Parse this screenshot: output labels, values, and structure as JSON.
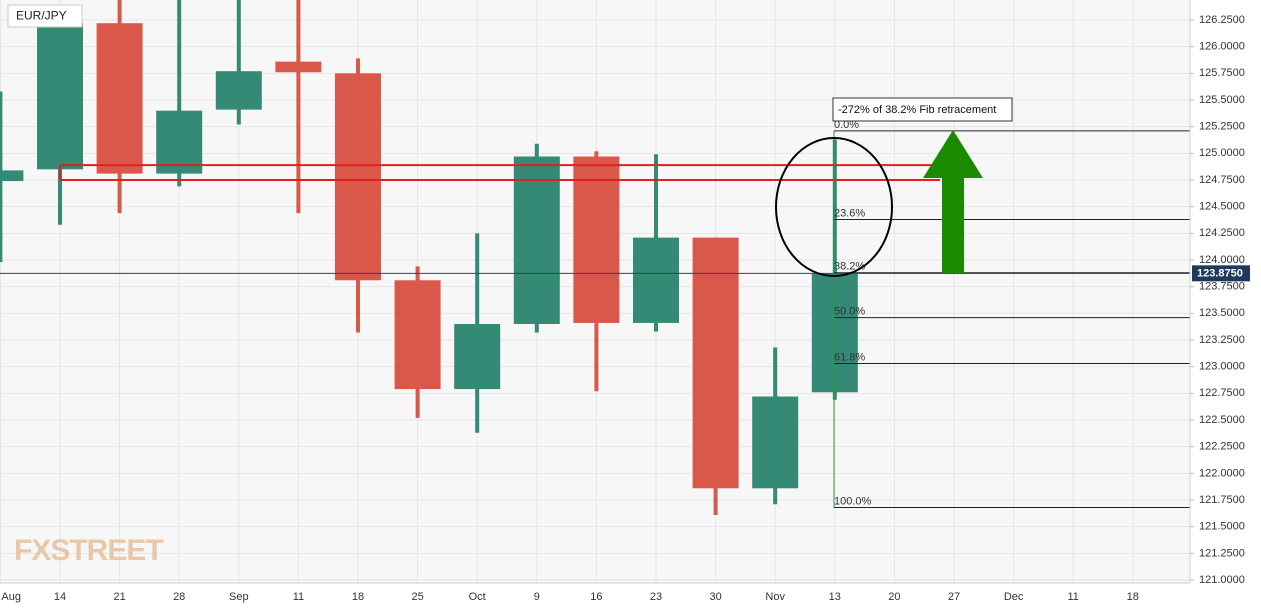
{
  "chart_data": {
    "type": "candlestick",
    "title": "EUR/JPY",
    "watermark": "FXSTREET",
    "categories": [
      "Aug",
      "14",
      "21",
      "28",
      "Sep",
      "11",
      "18",
      "25",
      "Oct",
      "9",
      "16",
      "23",
      "30",
      "Nov",
      "13",
      "20",
      "27",
      "Dec",
      "11",
      "18"
    ],
    "open": [
      124.74,
      124.85,
      126.22,
      124.81,
      125.41,
      125.86,
      125.75,
      123.81,
      122.79,
      123.4,
      124.97,
      123.41,
      124.21,
      121.86,
      122.76,
      null,
      null,
      null,
      null,
      null
    ],
    "high": [
      125.58,
      126.3,
      126.45,
      126.44,
      126.44,
      126.44,
      125.89,
      123.94,
      124.25,
      125.09,
      125.02,
      124.99,
      124.21,
      123.18,
      125.13,
      null,
      null,
      null,
      null,
      null
    ],
    "low": [
      123.98,
      124.33,
      124.44,
      124.69,
      125.27,
      124.44,
      123.32,
      122.52,
      122.38,
      123.32,
      122.77,
      123.33,
      121.61,
      121.71,
      122.69,
      null,
      null,
      null,
      null,
      null
    ],
    "close": [
      124.84,
      126.22,
      124.81,
      125.4,
      125.77,
      125.76,
      123.81,
      122.79,
      123.4,
      124.97,
      123.41,
      124.21,
      121.86,
      122.72,
      123.87,
      null,
      null,
      null,
      null,
      null
    ],
    "up_color": "#348a75",
    "down_color": "#d9584a",
    "ylim": [
      120.972,
      126.4375
    ],
    "yticks": [
      {
        "value": 121.0,
        "label": "121.0000"
      },
      {
        "value": 121.25,
        "label": "121.2500"
      },
      {
        "value": 121.5,
        "label": "121.5000"
      },
      {
        "value": 121.75,
        "label": "121.7500"
      },
      {
        "value": 122.0,
        "label": "122.0000"
      },
      {
        "value": 122.25,
        "label": "122.2500"
      },
      {
        "value": 122.5,
        "label": "122.5000"
      },
      {
        "value": 122.75,
        "label": "122.7500"
      },
      {
        "value": 123.0,
        "label": "123.0000"
      },
      {
        "value": 123.25,
        "label": "123.2500"
      },
      {
        "value": 123.5,
        "label": "123.5000"
      },
      {
        "value": 123.75,
        "label": "123.7500"
      },
      {
        "value": 124.0,
        "label": "124.0000"
      },
      {
        "value": 124.25,
        "label": "124.2500"
      },
      {
        "value": 124.5,
        "label": "124.5000"
      },
      {
        "value": 124.75,
        "label": "124.7500"
      },
      {
        "value": 125.0,
        "label": "125.0000"
      },
      {
        "value": 125.25,
        "label": "125.2500"
      },
      {
        "value": 125.5,
        "label": "125.5000"
      },
      {
        "value": 125.75,
        "label": "125.7500"
      },
      {
        "value": 126.0,
        "label": "126.0000"
      },
      {
        "value": 126.25,
        "label": "126.2500"
      }
    ],
    "grid": true,
    "current_price": {
      "value": 123.875,
      "label": "123.8750"
    },
    "resistance_zone": [
      124.75,
      124.89
    ],
    "fib_levels": [
      {
        "label": "0.0%",
        "price": 125.21
      },
      {
        "label": "23.6%",
        "price": 124.38
      },
      {
        "label": "38.2%",
        "price": 123.88
      },
      {
        "label": "50.0%",
        "price": 123.46
      },
      {
        "label": "61.8%",
        "price": 123.03
      },
      {
        "label": "100.0%",
        "price": 121.68
      }
    ],
    "annotation": "-272% of 38.2% Fib retracement"
  }
}
